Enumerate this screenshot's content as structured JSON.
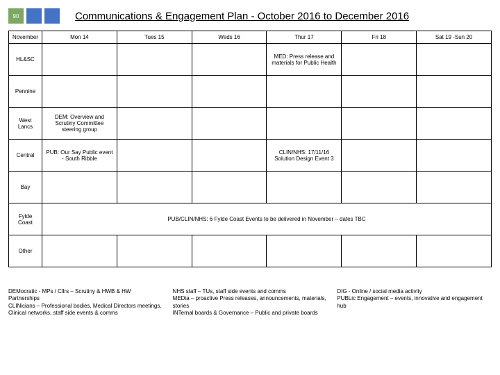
{
  "header": {
    "badge": "90",
    "title": "Communications & Engagement Plan - October 2016 to December 2016"
  },
  "table": {
    "corner": "November",
    "days": [
      "Mon 14",
      "Tues 15",
      "Weds 16",
      "Thur 17",
      "Fri 18",
      "Sat 19 -Sun 20"
    ],
    "rows": {
      "hlasc": {
        "label": "HL&SC",
        "thur": "MED: Press release and materials for Public Health"
      },
      "pennine": {
        "label": "Pennine"
      },
      "westlancs": {
        "label": "West Lancs",
        "mon": "DEM: Overview and Scrutiny Committee steering group"
      },
      "central": {
        "label": "Central",
        "mon": "PUB: Our Say Public event - South Ribble",
        "thur": "CLIN/NHS: 17/11/16 Solution Design Event 3"
      },
      "bay": {
        "label": "Bay"
      },
      "fylde": {
        "label": "Fylde Coast",
        "span": "PUB/CLIN/NHS: 6 Fylde Coast Events to be delivered in November – dates TBC"
      },
      "other": {
        "label": "Other"
      }
    }
  },
  "footer": {
    "col1": "DEMocratic - MPs / Cllrs – Scrutiny & HWB & HW Partnerships\nCLINicians – Professional bodies, Medical Directors meetings, Clinical networks, staff side events & comms",
    "col2": "NHS staff – TUs, staff side events and comms\nMEDia – proactive Press releases, announcements, materials, stories\nINTernal boards & Governance – Public and private boards",
    "col3": "DIG - Online / social media activity\nPUBLic Engagement – events, innovative and engagement hub"
  }
}
